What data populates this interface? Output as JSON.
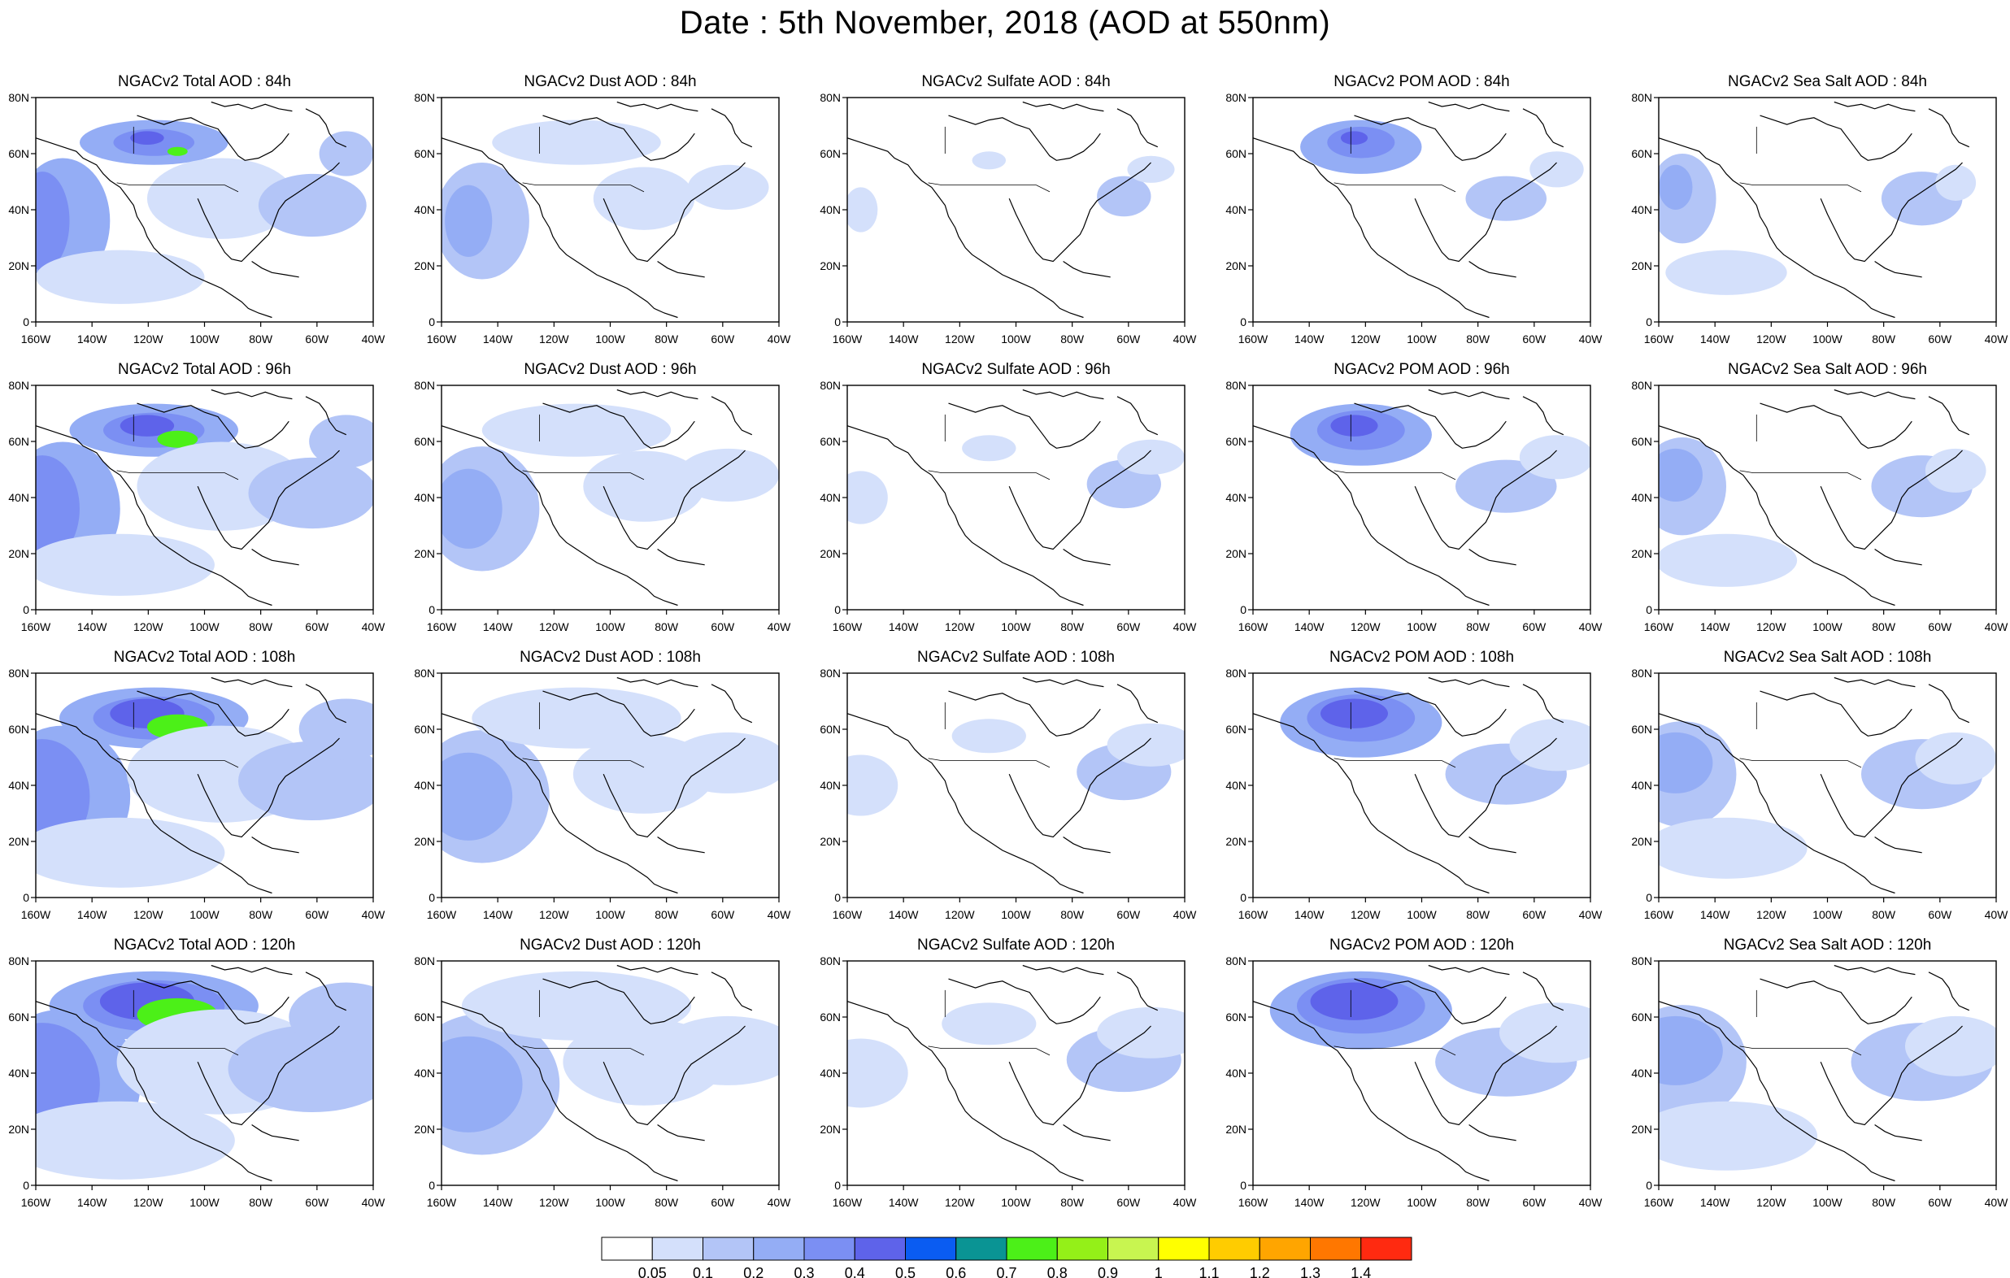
{
  "title": "Date : 5th November, 2018 (AOD at 550nm)",
  "panel_rows": [
    [
      "NGACv2 Total AOD : 84h",
      "NGACv2 Dust AOD : 84h",
      "NGACv2 Sulfate AOD : 84h",
      "NGACv2 POM AOD : 84h",
      "NGACv2 Sea Salt AOD : 84h"
    ],
    [
      "NGACv2 Total AOD : 96h",
      "NGACv2 Dust AOD : 96h",
      "NGACv2 Sulfate AOD : 96h",
      "NGACv2 POM AOD : 96h",
      "NGACv2 Sea Salt AOD : 96h"
    ],
    [
      "NGACv2 Total AOD : 108h",
      "NGACv2 Dust AOD : 108h",
      "NGACv2 Sulfate AOD : 108h",
      "NGACv2 POM AOD : 108h",
      "NGACv2 Sea Salt AOD : 108h"
    ],
    [
      "NGACv2 Total AOD : 120h",
      "NGACv2 Dust AOD : 120h",
      "NGACv2 Sulfate AOD : 120h",
      "NGACv2 POM AOD : 120h",
      "NGACv2 Sea Salt  AOD : 120h"
    ]
  ],
  "lat_ticks": [
    "0",
    "20N",
    "40N",
    "60N",
    "80N"
  ],
  "lon_ticks": [
    "160W",
    "140W",
    "120W",
    "100W",
    "80W",
    "60W",
    "40W"
  ],
  "colorbar": {
    "colors": [
      "#ffffff",
      "#d4e0fb",
      "#b3c5f7",
      "#94adf5",
      "#7b8ff3",
      "#5e63ea",
      "#0a5cf2",
      "#0a9494",
      "#4cf018",
      "#94f018",
      "#c8f550",
      "#ffff00",
      "#ffcc00",
      "#ffa500",
      "#ff7700",
      "#ff2a10"
    ],
    "labels": [
      "0.05",
      "0.1",
      "0.2",
      "0.3",
      "0.4",
      "0.5",
      "0.6",
      "0.7",
      "0.8",
      "0.9",
      "1",
      "1.1",
      "1.2",
      "1.3",
      "1.4"
    ]
  },
  "colors": {
    "coast": "#000000",
    "light": "#d4e0fb",
    "mid": "#b3c5f7",
    "strong": "#94adf5",
    "darker": "#7b8ff3",
    "deep": "#5e63ea",
    "green": "#4cf018"
  }
}
